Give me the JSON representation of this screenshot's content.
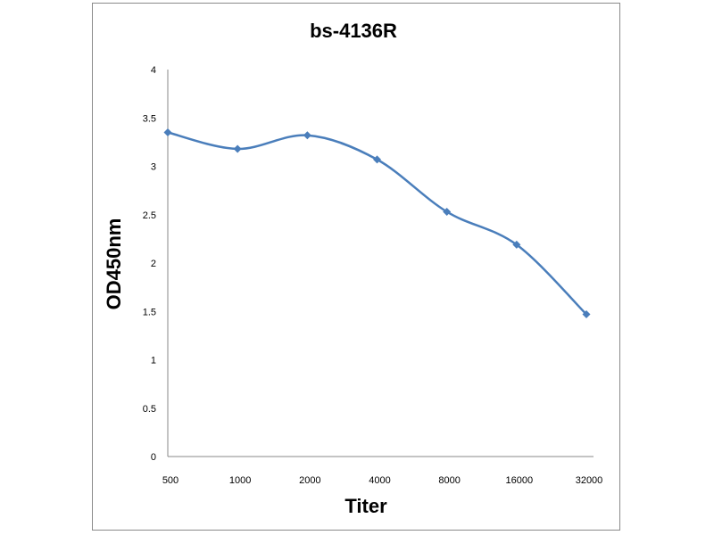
{
  "chart_data": {
    "type": "line",
    "title": "bs-4136R",
    "xlabel": "Titer",
    "ylabel": "OD450nm",
    "categories": [
      "500",
      "1000",
      "2000",
      "4000",
      "8000",
      "16000",
      "32000"
    ],
    "series": [
      {
        "values": [
          3.35,
          3.18,
          3.32,
          3.07,
          2.53,
          2.19,
          1.47
        ],
        "color": "#4a7ebb",
        "marker": "diamond",
        "smooth": true
      }
    ],
    "ylim": [
      0,
      4
    ],
    "yticks": [
      "0",
      "0.5",
      "1",
      "1.5",
      "2",
      "2.5",
      "3",
      "3.5",
      "4"
    ],
    "grid": false,
    "legend": "none"
  }
}
